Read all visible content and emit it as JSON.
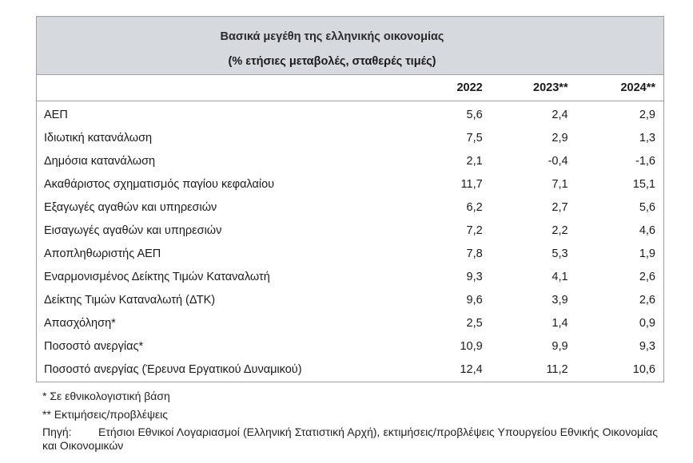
{
  "table": {
    "title": "Βασικά μεγέθη της ελληνικής οικονομίας",
    "subtitle": "(% ετήσιες μεταβολές, σταθερές τιμές)",
    "columns": [
      "2022",
      "2023**",
      "2024**"
    ],
    "rows": [
      {
        "label": "ΑΕΠ",
        "values": [
          "5,6",
          "2,4",
          "2,9"
        ]
      },
      {
        "label": "Ιδιωτική κατανάλωση",
        "values": [
          "7,5",
          "2,9",
          "1,3"
        ]
      },
      {
        "label": "Δημόσια κατανάλωση",
        "values": [
          "2,1",
          "-0,4",
          "-1,6"
        ]
      },
      {
        "label": "Ακαθάριστος σχηματισμός παγίου κεφαλαίου",
        "values": [
          "11,7",
          "7,1",
          "15,1"
        ]
      },
      {
        "label": "Εξαγωγές αγαθών και υπηρεσιών",
        "values": [
          "6,2",
          "2,7",
          "5,6"
        ]
      },
      {
        "label": "Εισαγωγές αγαθών και υπηρεσιών",
        "values": [
          "7,2",
          "2,2",
          "4,6"
        ]
      },
      {
        "label": "Αποπληθωριστής ΑΕΠ",
        "values": [
          "7,8",
          "5,3",
          "1,9"
        ]
      },
      {
        "label": "Εναρμονισμένος Δείκτης Τιμών Καταναλωτή",
        "values": [
          "9,3",
          "4,1",
          "2,6"
        ]
      },
      {
        "label": "Δείκτης Τιμών Καταναλωτή (ΔΤΚ)",
        "values": [
          "9,6",
          "3,9",
          "2,6"
        ]
      },
      {
        "label": "Απασχόληση*",
        "values": [
          "2,5",
          "1,4",
          "0,9"
        ]
      },
      {
        "label": "Ποσοστό ανεργίας*",
        "values": [
          "10,9",
          "9,9",
          "9,3"
        ]
      },
      {
        "label": "Ποσοστό ανεργίας (Έρευνα Εργατικού Δυναμικού)",
        "values": [
          "12,4",
          "11,2",
          "10,6"
        ]
      }
    ]
  },
  "notes": {
    "note1": "*  Σε εθνικολογιστική βάση",
    "note2": "** Εκτιμήσεις/προβλέψεις",
    "source_label": "Πηγή:",
    "source_text": "Ετήσιοι Εθνικοί Λογαριασμοί (Ελληνική Στατιστική Αρχή), εκτιμήσεις/προβλέψεις Υπουργείου Εθνικής Οικονομίας και Οικονομικών"
  },
  "colors": {
    "header_background": "#d6d9de",
    "border": "#9e9e9e",
    "text": "#1a1a1a"
  }
}
